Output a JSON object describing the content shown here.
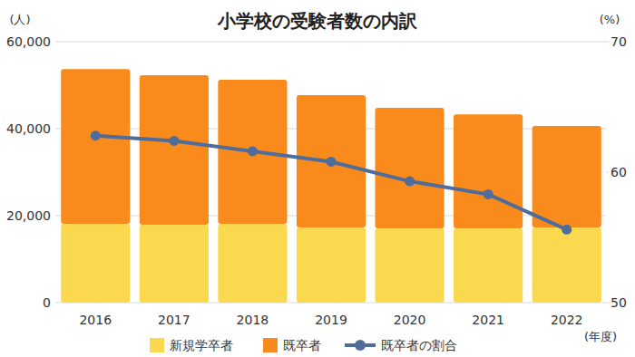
{
  "chart_data": {
    "type": "bar",
    "title": "小学校の受験者数の内訳",
    "categories": [
      "2016",
      "2017",
      "2018",
      "2019",
      "2020",
      "2021",
      "2022"
    ],
    "x_label": "(年度)",
    "y_label": "(人)",
    "y2_label": "(%)",
    "stacked": true,
    "grid": true,
    "legend": "bottom",
    "series": [
      {
        "name": "新規学卒者",
        "type": "bar",
        "color": "#fbd94f",
        "values": [
          18100,
          17900,
          18100,
          17300,
          17100,
          17100,
          17300
        ]
      },
      {
        "name": "既卒者",
        "type": "bar",
        "color": "#f98b1d",
        "values": [
          35600,
          34400,
          33150,
          30400,
          27700,
          26200,
          23300
        ]
      },
      {
        "name": "既卒者の割合",
        "type": "line",
        "axis": "y2",
        "color": "#506c9a",
        "marker": "circle",
        "line_style": "solid",
        "values": [
          62.8,
          62.4,
          61.6,
          60.8,
          59.3,
          58.3,
          55.6
        ]
      }
    ],
    "ylim": [
      0,
      60000
    ],
    "yticks": [
      0,
      {
        "value": 20000,
        "label": "20,000"
      },
      {
        "value": 40000,
        "label": "40,000"
      },
      {
        "value": 60000,
        "label": "60,000"
      }
    ],
    "y2lim": [
      50,
      70
    ],
    "y2ticks": [
      50,
      60,
      70
    ]
  }
}
